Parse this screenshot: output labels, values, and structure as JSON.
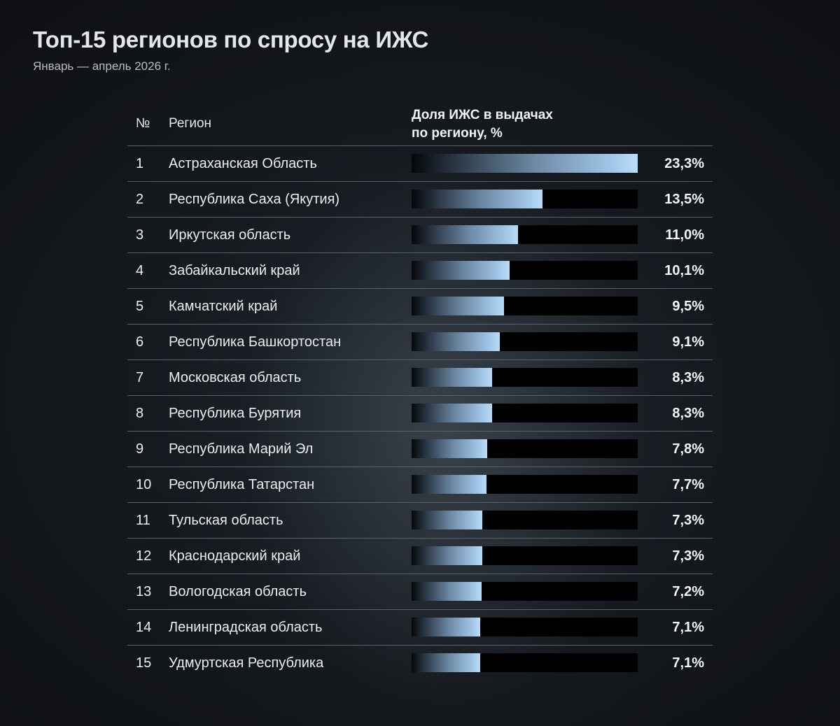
{
  "header": {
    "title": "Топ-15 регионов по спросу на ИЖС",
    "subtitle": "Январь — апрель 2026 г."
  },
  "table": {
    "col_num": "№",
    "col_region": "Регион",
    "col_share_line1": "Доля ИЖС в выдачах",
    "col_share_line2": "по региону, %"
  },
  "chart_data": {
    "type": "bar",
    "orientation": "horizontal",
    "title": "Топ-15 регионов по спросу на ИЖС",
    "subtitle": "Январь — апрель 2026 г.",
    "value_label": "Доля ИЖС в выдачах по региону, %",
    "xlim": [
      0,
      23.3
    ],
    "rows": [
      {
        "rank": "1",
        "region": "Астраханская Область",
        "value": 23.3,
        "label": "23,3%"
      },
      {
        "rank": "2",
        "region": "Республика Саха (Якутия)",
        "value": 13.5,
        "label": "13,5%"
      },
      {
        "rank": "3",
        "region": "Иркутская область",
        "value": 11.0,
        "label": "11,0%"
      },
      {
        "rank": "4",
        "region": "Забайкальский край",
        "value": 10.1,
        "label": "10,1%"
      },
      {
        "rank": "5",
        "region": "Камчатский край",
        "value": 9.5,
        "label": "9,5%"
      },
      {
        "rank": "6",
        "region": "Республика Башкортостан",
        "value": 9.1,
        "label": "9,1%"
      },
      {
        "rank": "7",
        "region": "Московская область",
        "value": 8.3,
        "label": "8,3%"
      },
      {
        "rank": "8",
        "region": "Республика Бурятия",
        "value": 8.3,
        "label": "8,3%"
      },
      {
        "rank": "9",
        "region": "Республика Марий Эл",
        "value": 7.8,
        "label": "7,8%"
      },
      {
        "rank": "10",
        "region": "Республика Татарстан",
        "value": 7.7,
        "label": "7,7%"
      },
      {
        "rank": "11",
        "region": "Тульская область",
        "value": 7.3,
        "label": "7,3%"
      },
      {
        "rank": "12",
        "region": "Краснодарский край",
        "value": 7.3,
        "label": "7,3%"
      },
      {
        "rank": "13",
        "region": "Вологодская область",
        "value": 7.2,
        "label": "7,2%"
      },
      {
        "rank": "14",
        "region": "Ленинградская область",
        "value": 7.1,
        "label": "7,1%"
      },
      {
        "rank": "15",
        "region": "Удмуртская Республика",
        "value": 7.1,
        "label": "7,1%"
      }
    ]
  }
}
